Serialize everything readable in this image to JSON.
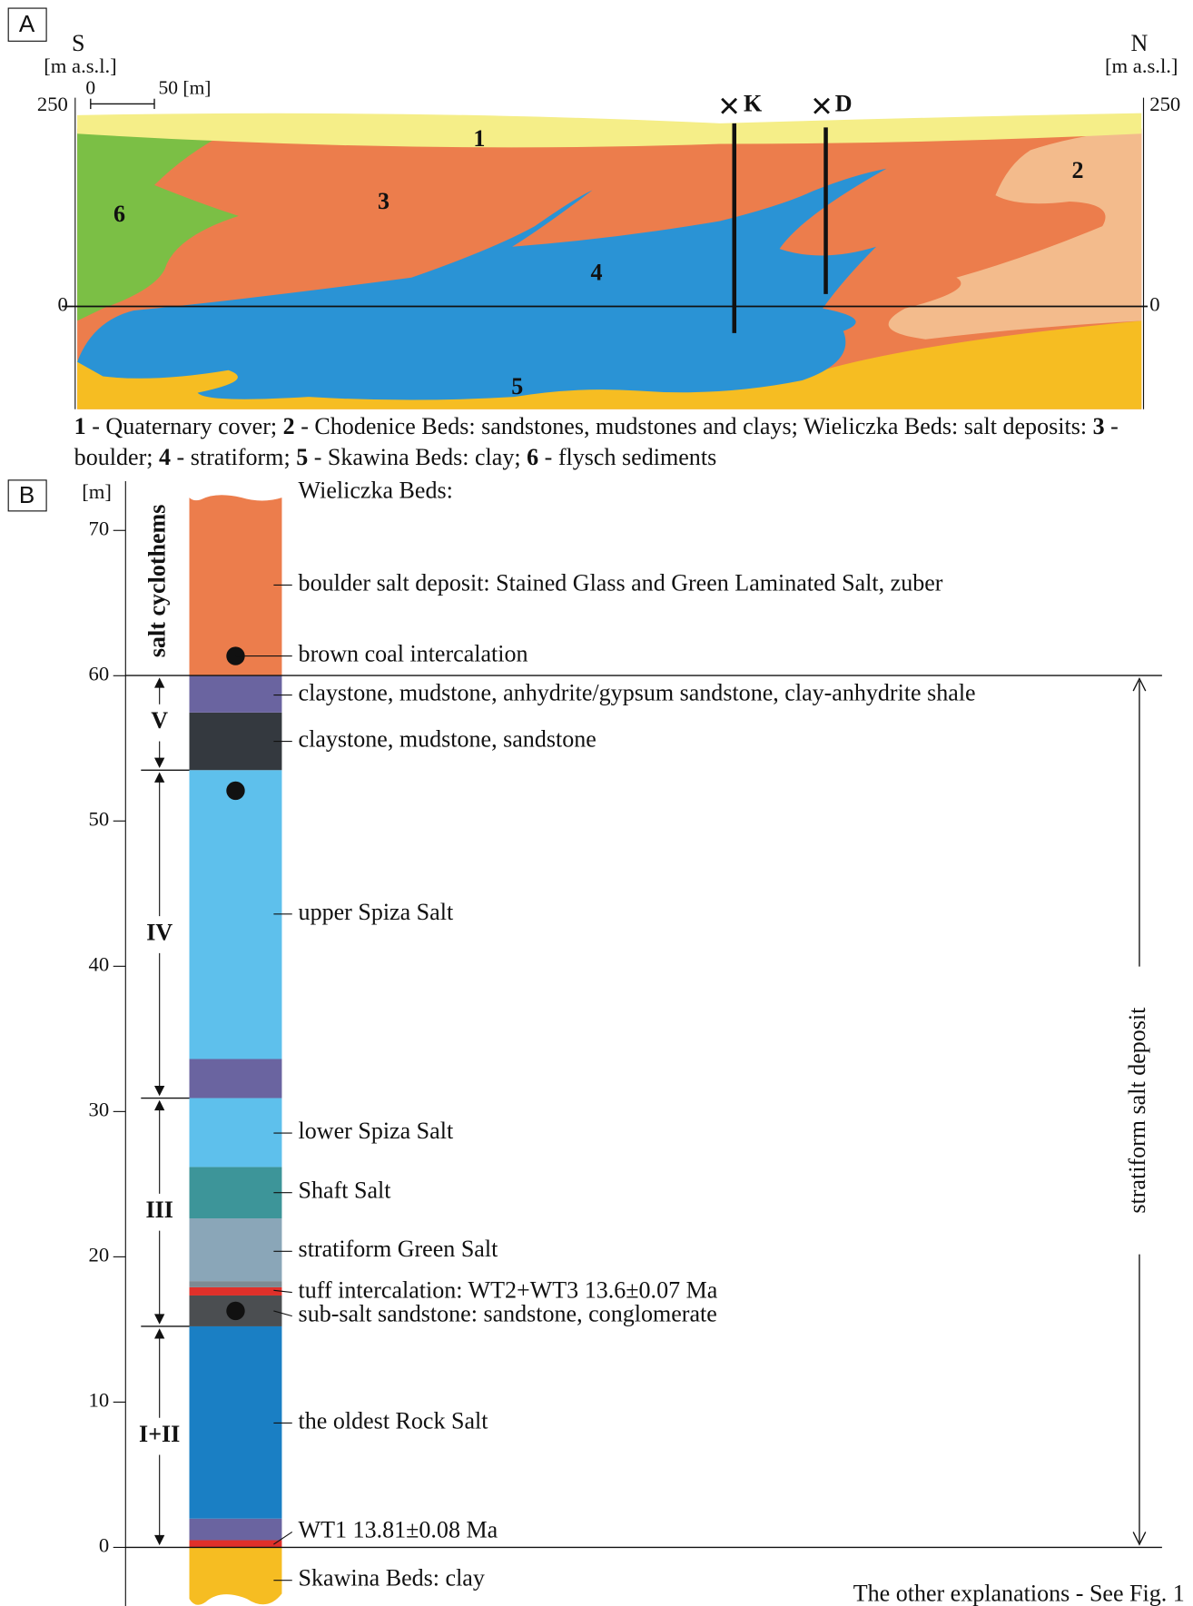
{
  "panel_a": {
    "label": "A",
    "south": "S",
    "north": "N",
    "left_unit": "[m a.s.l.]",
    "right_unit": "[m a.s.l.]",
    "scale_bar": {
      "start": "0",
      "end": "50 [m]"
    },
    "left_ticks": [
      250,
      0
    ],
    "right_ticks": [
      250,
      0
    ],
    "wells": [
      "K",
      "D"
    ],
    "units": [
      "1",
      "2",
      "3",
      "4",
      "5",
      "6"
    ],
    "caption": [
      {
        "number": "1",
        "text": " - Quaternary cover; "
      },
      {
        "number": "2",
        "text": " - Chodenice Beds: sandstones, mudstones and clays; Wieliczka Beds: salt deposits: "
      },
      {
        "number": "3",
        "text": " - boulder; "
      },
      {
        "number": "4",
        "text": " - stratiform; "
      },
      {
        "number": "5",
        "text": " - Skawina Beds: clay; "
      },
      {
        "number": "6",
        "text": " - flysch sediments"
      }
    ]
  },
  "panel_b": {
    "label": "B",
    "unit": "[m]",
    "yticks": [
      0,
      10,
      20,
      30,
      40,
      50,
      60,
      70
    ],
    "cyclothem_title": "salt cyclothems",
    "cyclothems": [
      "V",
      "IV",
      "III",
      "I+II"
    ],
    "header": "Wieliczka Beds:",
    "descriptions": [
      "boulder salt deposit: Stained Glass and Green Laminated Salt, zuber",
      "brown coal intercalation",
      "claystone, mudstone, anhydrite/gypsum sandstone, clay-anhydrite shale",
      "claystone, mudstone, sandstone",
      "upper Spiza Salt",
      "lower Spiza Salt",
      "Shaft Salt",
      "stratiform Green Salt",
      "tuff intercalation: WT2+WT3 13.6±0.07 Ma",
      "sub-salt sandstone: sandstone, conglomerate",
      "the oldest Rock Salt",
      "WT1 13.81±0.08 Ma",
      "Skawina Beds: clay"
    ],
    "right_label": "stratiform salt deposit",
    "footnote": "The other explanations - See Fig. 1"
  }
}
